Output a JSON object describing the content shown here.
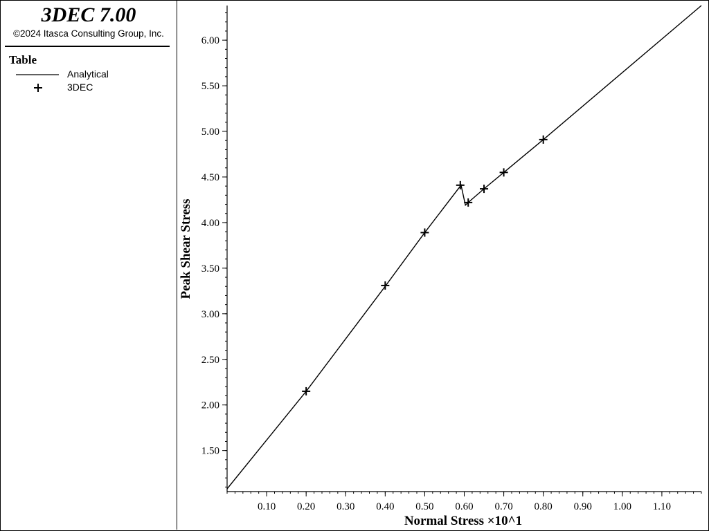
{
  "app": {
    "title": "3DEC 7.00",
    "copyright": "©2024 Itasca Consulting Group, Inc."
  },
  "legend": {
    "title": "Table",
    "items": [
      {
        "label": "Analytical",
        "symbol": "line"
      },
      {
        "label": "3DEC",
        "symbol": "plus"
      }
    ]
  },
  "chart_data": {
    "type": "line",
    "xlabel": "Normal Stress ×10^1",
    "ylabel": "Peak Shear Stress",
    "xlim": [
      0.0,
      1.2
    ],
    "ylim": [
      1.05,
      6.38
    ],
    "x_ticks": [
      "0.10",
      "0.20",
      "0.30",
      "0.40",
      "0.50",
      "0.60",
      "0.70",
      "0.80",
      "0.90",
      "1.00",
      "1.10"
    ],
    "y_ticks": [
      "1.50",
      "2.00",
      "2.50",
      "3.00",
      "3.50",
      "4.00",
      "4.50",
      "5.00",
      "5.50",
      "6.00"
    ],
    "grid": false,
    "series": [
      {
        "name": "Analytical",
        "style": "line",
        "x": [
          0.0,
          0.2,
          0.4,
          0.5,
          0.592,
          0.603,
          0.61,
          0.65,
          0.7,
          0.8,
          1.2
        ],
        "y": [
          1.08,
          2.15,
          3.3,
          3.89,
          4.41,
          4.19,
          4.22,
          4.37,
          4.55,
          4.91,
          6.38
        ]
      },
      {
        "name": "3DEC",
        "style": "plus",
        "x": [
          0.2,
          0.4,
          0.5,
          0.59,
          0.61,
          0.65,
          0.7,
          0.8
        ],
        "y": [
          2.15,
          3.31,
          3.89,
          4.41,
          4.22,
          4.37,
          4.55,
          4.91
        ]
      }
    ],
    "colors": {
      "line": "#000000",
      "marker": "#000000"
    }
  }
}
